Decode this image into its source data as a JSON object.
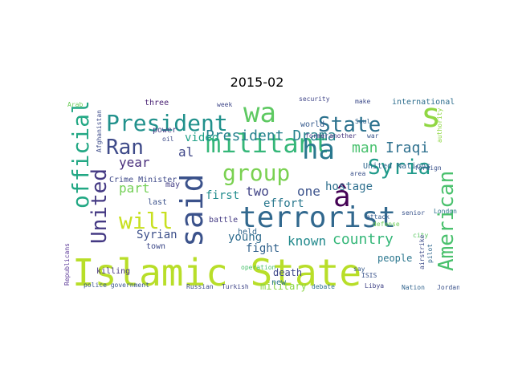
{
  "title": "2015-02",
  "words": [
    {
      "text": "Islamic State",
      "color": "#b8de29"
    },
    {
      "text": "said",
      "color": "#3b528b"
    },
    {
      "text": "terrorist",
      "color": "#31688e"
    },
    {
      "text": "President",
      "color": "#21918c"
    },
    {
      "text": "militant",
      "color": "#35b779"
    },
    {
      "text": "wa",
      "color": "#5ec962"
    },
    {
      "text": "ha",
      "color": "#2a788e"
    },
    {
      "text": "s",
      "color": "#90d743"
    },
    {
      "text": "group",
      "color": "#7ad151"
    },
    {
      "text": "Ran",
      "color": "#3e4a89"
    },
    {
      "text": "official",
      "color": "#22a884"
    },
    {
      "text": "United",
      "color": "#443983"
    },
    {
      "text": "will",
      "color": "#c8e020"
    },
    {
      "text": "American",
      "color": "#4ac16d"
    },
    {
      "text": "State",
      "color": "#2c728e"
    },
    {
      "text": "Syria",
      "color": "#1f9a8a"
    },
    {
      "text": "â",
      "color": "#440154"
    },
    {
      "text": "President Drama",
      "color": "#26828e"
    },
    {
      "text": "country",
      "color": "#35b779"
    },
    {
      "text": "man",
      "color": "#48c16e"
    },
    {
      "text": "Iraqi",
      "color": "#2d708e"
    },
    {
      "text": "video",
      "color": "#1fa187"
    },
    {
      "text": "hostage",
      "color": "#2e6f8e"
    },
    {
      "text": "al",
      "color": "#3f4788"
    },
    {
      "text": "year",
      "color": "#472c7a"
    },
    {
      "text": "part",
      "color": "#73d056"
    },
    {
      "text": "two",
      "color": "#414487"
    },
    {
      "text": "one",
      "color": "#3b528b"
    },
    {
      "text": "effort",
      "color": "#2a788e"
    },
    {
      "text": "first",
      "color": "#228c8d"
    },
    {
      "text": "Syrian",
      "color": "#3c4f8a"
    },
    {
      "text": "young",
      "color": "#2f6c8e"
    },
    {
      "text": "fight",
      "color": "#33638d"
    },
    {
      "text": "known",
      "color": "#238a8d"
    },
    {
      "text": "international",
      "color": "#2e6e8e"
    },
    {
      "text": "United Nations",
      "color": "#31688e"
    },
    {
      "text": "Crime Minister",
      "color": "#3e4989"
    },
    {
      "text": "people",
      "color": "#2a768e"
    },
    {
      "text": "death",
      "color": "#3f4889"
    },
    {
      "text": "military",
      "color": "#8bd646"
    },
    {
      "text": "killing",
      "color": "#46337e"
    },
    {
      "text": "Afghanistan",
      "color": "#3e4c8a"
    },
    {
      "text": "Republicans",
      "color": "#5e3c99"
    },
    {
      "text": "may",
      "color": "#433e85"
    },
    {
      "text": "last",
      "color": "#3b528b"
    },
    {
      "text": "three",
      "color": "#482173"
    },
    {
      "text": "power",
      "color": "#433e85"
    },
    {
      "text": "battle",
      "color": "#443a83"
    },
    {
      "text": "town",
      "color": "#3e4a89"
    },
    {
      "text": "held",
      "color": "#31678e"
    },
    {
      "text": "new",
      "color": "#2c728e"
    },
    {
      "text": "police government",
      "color": "#39568c"
    },
    {
      "text": "Russian",
      "color": "#3d4d8a"
    },
    {
      "text": "Turkish",
      "color": "#404688"
    },
    {
      "text": "Nation",
      "color": "#32648e"
    },
    {
      "text": "Jordan",
      "color": "#3b528b"
    },
    {
      "text": "Libya",
      "color": "#414487"
    },
    {
      "text": "ISIS",
      "color": "#3a548c"
    },
    {
      "text": "debate",
      "color": "#2d708e"
    },
    {
      "text": "world",
      "color": "#375b8d"
    },
    {
      "text": "security",
      "color": "#404688"
    },
    {
      "text": "make",
      "color": "#3e4c8a"
    },
    {
      "text": "week",
      "color": "#3f4788"
    },
    {
      "text": "war",
      "color": "#39568c"
    },
    {
      "text": "Arab",
      "color": "#6ccd5a"
    },
    {
      "text": "authority",
      "color": "#8fd744"
    },
    {
      "text": "foreign",
      "color": "#3b528b"
    },
    {
      "text": "defense",
      "color": "#6ece58"
    },
    {
      "text": "city",
      "color": "#5cc863"
    },
    {
      "text": "pilot",
      "color": "#31688e"
    },
    {
      "text": "airstrike",
      "color": "#3e4c8a"
    },
    {
      "text": "London",
      "color": "#2d718e"
    },
    {
      "text": "senior",
      "color": "#3a548c"
    },
    {
      "text": "attack",
      "color": "#365c8d"
    },
    {
      "text": "former",
      "color": "#443983"
    },
    {
      "text": "oil",
      "color": "#3e4c8a"
    },
    {
      "text": "say",
      "color": "#375b8d"
    },
    {
      "text": "operation",
      "color": "#4ac16d"
    },
    {
      "text": "Soul",
      "color": "#33638d"
    },
    {
      "text": "another",
      "color": "#46337e"
    },
    {
      "text": "area",
      "color": "#3b528b"
    }
  ]
}
